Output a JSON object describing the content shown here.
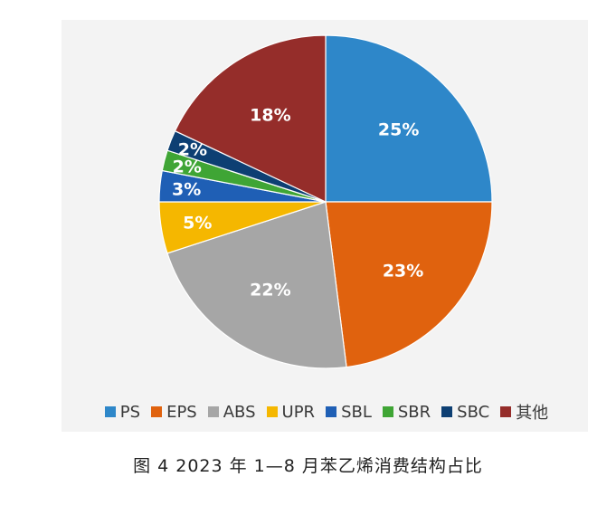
{
  "chart_data": {
    "type": "pie",
    "slices": [
      {
        "label": "PS",
        "value": 25,
        "value_label": "25%",
        "color": "#2e87c9"
      },
      {
        "label": "EPS",
        "value": 23,
        "value_label": "23%",
        "color": "#e0620e"
      },
      {
        "label": "ABS",
        "value": 22,
        "value_label": "22%",
        "color": "#a6a6a6"
      },
      {
        "label": "UPR",
        "value": 5,
        "value_label": "5%",
        "color": "#f5b700"
      },
      {
        "label": "SBL",
        "value": 3,
        "value_label": "3%",
        "color": "#1f5fb5"
      },
      {
        "label": "SBR",
        "value": 2,
        "value_label": "2%",
        "color": "#3fa535"
      },
      {
        "label": "SBC",
        "value": 2,
        "value_label": "2%",
        "color": "#0d3f73"
      },
      {
        "label": "其他",
        "value": 18,
        "value_label": "18%",
        "color": "#952d2a"
      }
    ],
    "start_angle": "12 o'clock",
    "direction": "clockwise",
    "legend_placement": "bottom"
  },
  "caption": "图 4  2023 年 1—8 月苯乙烯消费结构占比"
}
